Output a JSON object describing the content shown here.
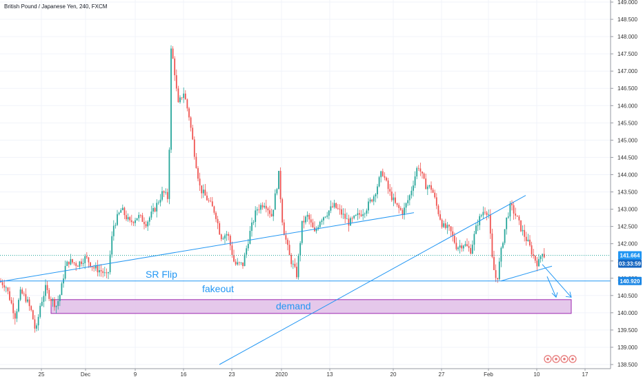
{
  "chart_data": {
    "type": "candlestick",
    "title": "British Pound / Japanese Yen, 240, FXCM",
    "y_ticks": [
      "149.000",
      "148.500",
      "148.000",
      "147.500",
      "147.000",
      "146.500",
      "146.000",
      "145.500",
      "145.000",
      "144.500",
      "144.000",
      "143.500",
      "143.000",
      "142.500",
      "142.000",
      "141.500",
      "141.000",
      "140.500",
      "140.000",
      "139.500",
      "139.000",
      "138.500"
    ],
    "x_ticks": [
      "25",
      "Dec",
      "9",
      "16",
      "23",
      "2020",
      "13",
      "20",
      "27",
      "Feb",
      "10",
      "17"
    ],
    "y_range": [
      138.45,
      149.1
    ],
    "current_price": "141.664",
    "countdown": "03:33:59",
    "sr_price": "140.920",
    "annotations": {
      "sr_flip": "SR Flip",
      "fakeout": "fakeout",
      "demand": "demand"
    },
    "anchors": [
      {
        "x": 0,
        "y": 140.9
      },
      {
        "x": 8,
        "y": 140.8
      },
      {
        "x": 16,
        "y": 140.3
      },
      {
        "x": 22,
        "y": 139.9
      },
      {
        "x": 30,
        "y": 140.6
      },
      {
        "x": 38,
        "y": 140.4
      },
      {
        "x": 46,
        "y": 140.0
      },
      {
        "x": 52,
        "y": 139.4
      },
      {
        "x": 58,
        "y": 140.2
      },
      {
        "x": 66,
        "y": 140.7
      },
      {
        "x": 74,
        "y": 140.4
      },
      {
        "x": 82,
        "y": 140.2
      },
      {
        "x": 88,
        "y": 140.6
      },
      {
        "x": 94,
        "y": 141.3
      },
      {
        "x": 100,
        "y": 141.5
      },
      {
        "x": 112,
        "y": 141.4
      },
      {
        "x": 124,
        "y": 141.6
      },
      {
        "x": 136,
        "y": 141.3
      },
      {
        "x": 148,
        "y": 141.2
      },
      {
        "x": 156,
        "y": 141.0
      },
      {
        "x": 164,
        "y": 142.5
      },
      {
        "x": 176,
        "y": 143.0
      },
      {
        "x": 188,
        "y": 142.6
      },
      {
        "x": 200,
        "y": 142.8
      },
      {
        "x": 212,
        "y": 142.6
      },
      {
        "x": 224,
        "y": 143.0
      },
      {
        "x": 236,
        "y": 143.5
      },
      {
        "x": 244,
        "y": 143.3
      },
      {
        "x": 248,
        "y": 147.6
      },
      {
        "x": 252,
        "y": 147.2
      },
      {
        "x": 258,
        "y": 146.0
      },
      {
        "x": 266,
        "y": 146.4
      },
      {
        "x": 274,
        "y": 145.7
      },
      {
        "x": 282,
        "y": 144.6
      },
      {
        "x": 290,
        "y": 143.6
      },
      {
        "x": 300,
        "y": 143.3
      },
      {
        "x": 312,
        "y": 142.9
      },
      {
        "x": 320,
        "y": 142.2
      },
      {
        "x": 330,
        "y": 142.3
      },
      {
        "x": 340,
        "y": 141.4
      },
      {
        "x": 352,
        "y": 141.4
      },
      {
        "x": 362,
        "y": 142.3
      },
      {
        "x": 372,
        "y": 143.0
      },
      {
        "x": 384,
        "y": 143.2
      },
      {
        "x": 394,
        "y": 142.8
      },
      {
        "x": 404,
        "y": 144.0
      },
      {
        "x": 410,
        "y": 142.5
      },
      {
        "x": 420,
        "y": 141.6
      },
      {
        "x": 430,
        "y": 141.1
      },
      {
        "x": 438,
        "y": 142.6
      },
      {
        "x": 446,
        "y": 142.8
      },
      {
        "x": 456,
        "y": 142.3
      },
      {
        "x": 464,
        "y": 142.7
      },
      {
        "x": 474,
        "y": 142.9
      },
      {
        "x": 484,
        "y": 143.1
      },
      {
        "x": 494,
        "y": 142.9
      },
      {
        "x": 506,
        "y": 142.6
      },
      {
        "x": 518,
        "y": 142.8
      },
      {
        "x": 530,
        "y": 143.0
      },
      {
        "x": 542,
        "y": 143.4
      },
      {
        "x": 554,
        "y": 144.1
      },
      {
        "x": 564,
        "y": 143.5
      },
      {
        "x": 574,
        "y": 143.1
      },
      {
        "x": 584,
        "y": 142.9
      },
      {
        "x": 594,
        "y": 143.4
      },
      {
        "x": 606,
        "y": 144.3
      },
      {
        "x": 616,
        "y": 143.7
      },
      {
        "x": 626,
        "y": 143.6
      },
      {
        "x": 634,
        "y": 143.0
      },
      {
        "x": 642,
        "y": 142.5
      },
      {
        "x": 652,
        "y": 142.4
      },
      {
        "x": 662,
        "y": 141.9
      },
      {
        "x": 672,
        "y": 142.0
      },
      {
        "x": 682,
        "y": 141.8
      },
      {
        "x": 692,
        "y": 142.6
      },
      {
        "x": 702,
        "y": 143.0
      },
      {
        "x": 708,
        "y": 142.9
      },
      {
        "x": 714,
        "y": 141.4
      },
      {
        "x": 720,
        "y": 140.9
      },
      {
        "x": 728,
        "y": 142.0
      },
      {
        "x": 734,
        "y": 142.7
      },
      {
        "x": 740,
        "y": 143.1
      },
      {
        "x": 748,
        "y": 142.8
      },
      {
        "x": 756,
        "y": 142.4
      },
      {
        "x": 766,
        "y": 142.0
      },
      {
        "x": 774,
        "y": 141.6
      },
      {
        "x": 780,
        "y": 141.4
      },
      {
        "x": 786,
        "y": 141.8
      },
      {
        "x": 790,
        "y": 141.6
      }
    ],
    "lines": [
      {
        "name": "rising-trendline-lower",
        "from": {
          "x": 0,
          "y": 140.9
        },
        "to": {
          "x": 600,
          "y": 142.9
        }
      },
      {
        "name": "rising-trendline-steep",
        "from": {
          "x": 318,
          "y": 138.5
        },
        "to": {
          "x": 762,
          "y": 143.4
        }
      },
      {
        "name": "wedge-lower-line",
        "from": {
          "x": 726,
          "y": 140.92
        },
        "to": {
          "x": 800,
          "y": 141.35
        }
      }
    ],
    "sr_line_price": 140.92,
    "current_price_value": 141.664,
    "demand_zone": {
      "from_x": 74,
      "to_x": 828,
      "top": 140.38,
      "bottom": 139.98
    },
    "colors": {
      "up": "#26a69a",
      "down": "#ef5350",
      "line": "#2196f3",
      "demand_fill": "#e1bee7",
      "demand_border": "#9c27b0",
      "price_tag": "#2196f3",
      "countdown_tag": "#1565c0",
      "sr_tag": "#1e88e5",
      "annotation_text": "#2196f3",
      "axis_border": "#9598a1"
    }
  }
}
